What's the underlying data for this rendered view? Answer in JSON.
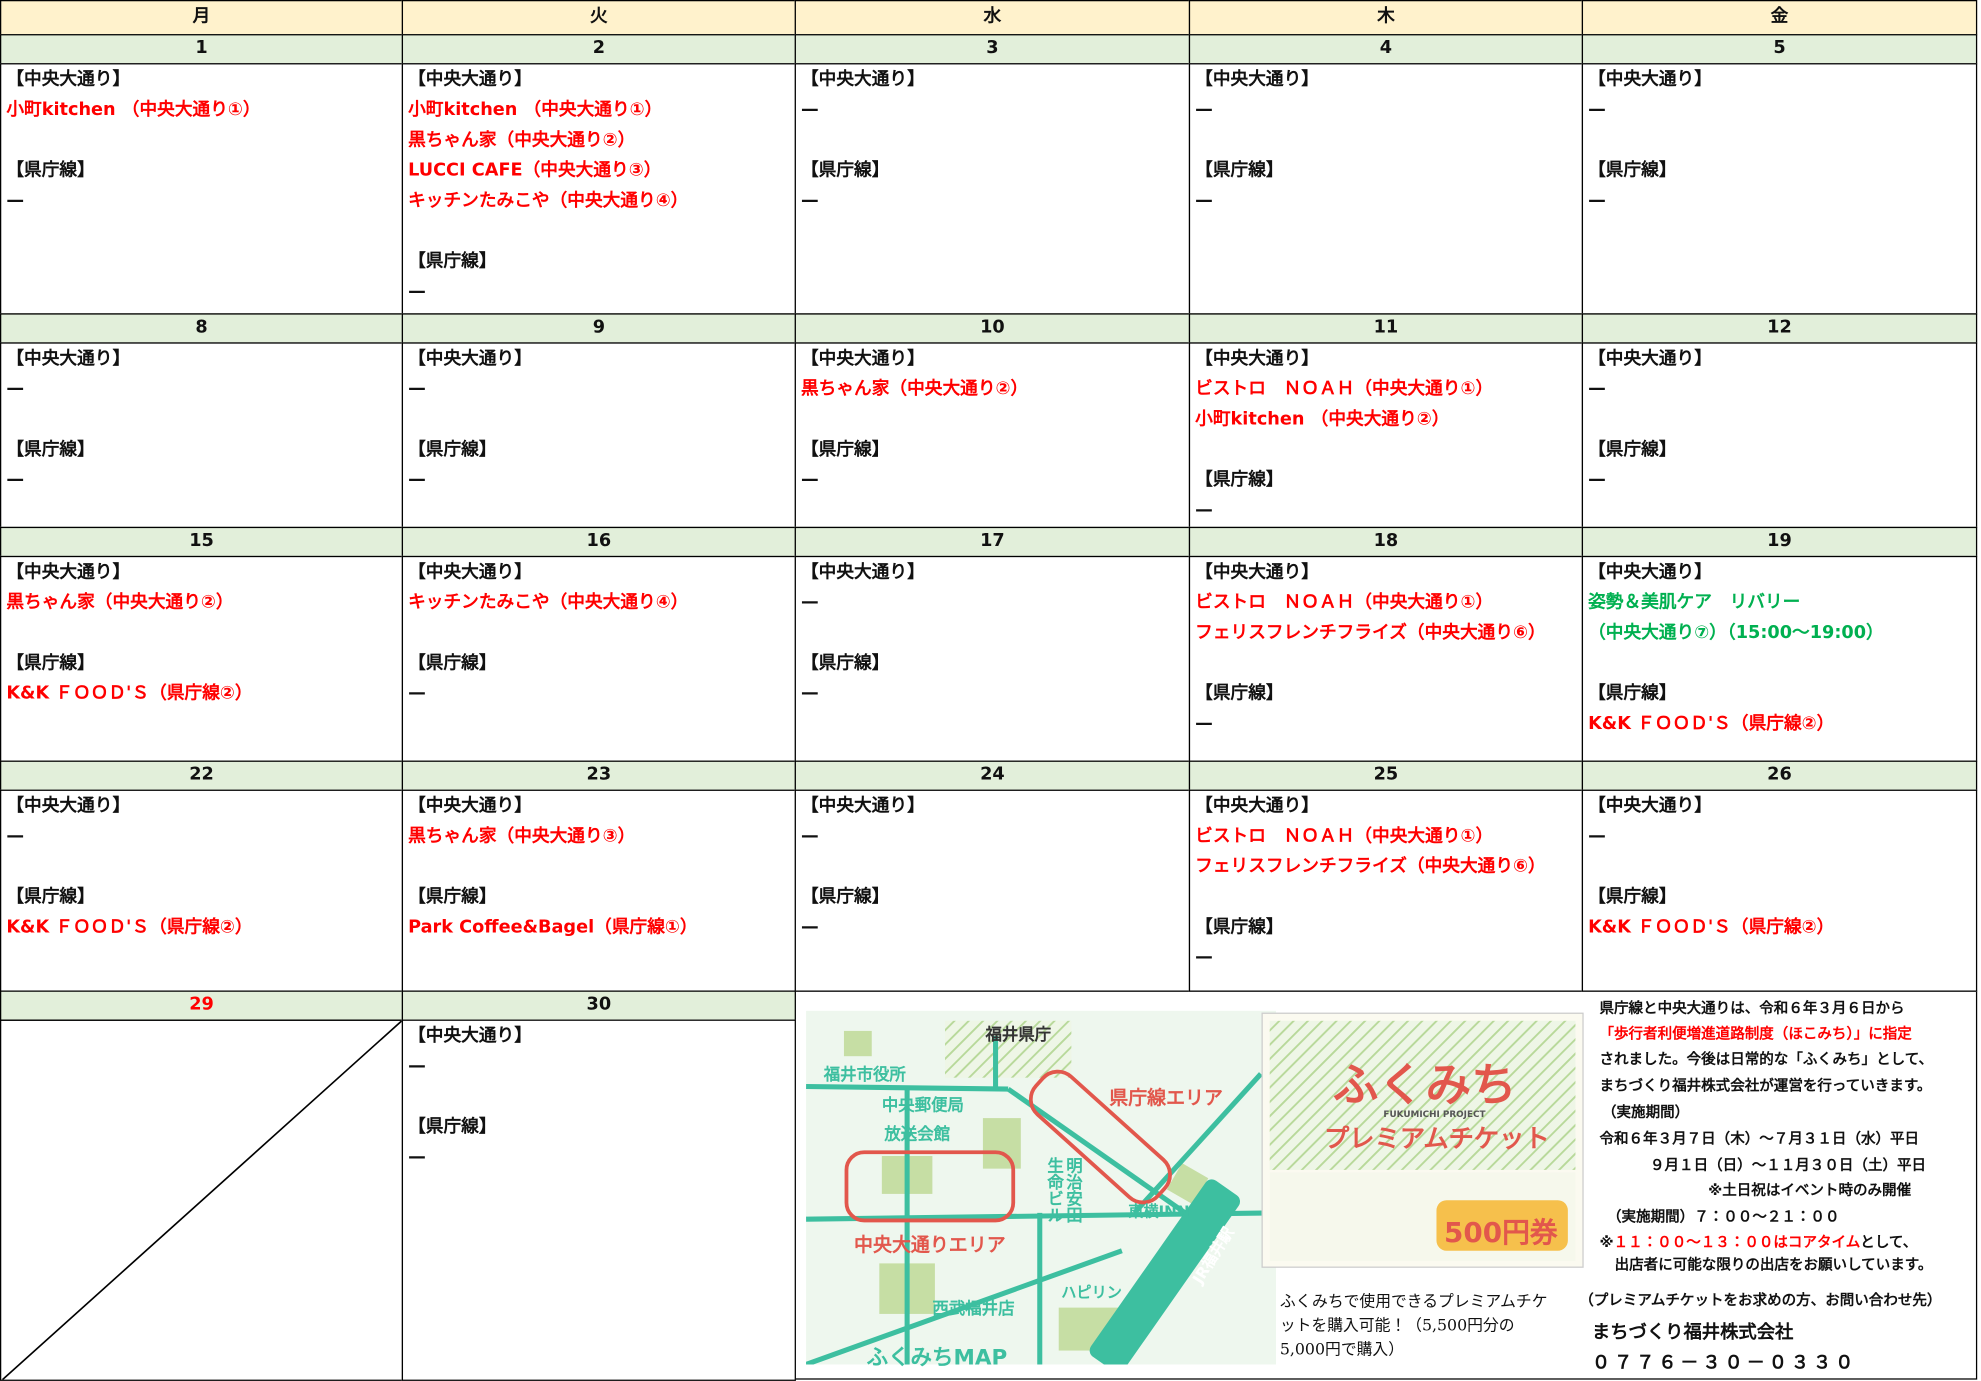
{
  "header": {
    "days": [
      "月",
      "火",
      "水",
      "木",
      "金"
    ]
  },
  "weeks": [
    {
      "days": [
        {
          "date": 1,
          "sections": [
            {
              "heading": "【中央大通り】",
              "items": [
                {
                  "text": "小町kitchen （中央大通り①）",
                  "color": "#ff0000"
                }
              ]
            },
            {
              "heading": "【県庁線】",
              "items": [
                {
                  "text": "—"
                }
              ]
            }
          ]
        },
        {
          "date": 2,
          "sections": [
            {
              "heading": "【中央大通り】",
              "items": [
                {
                  "text": "小町kitchen （中央大通り①）",
                  "color": "#ff0000"
                },
                {
                  "text": "黒ちゃん家（中央大通り②）",
                  "color": "#ff0000"
                },
                {
                  "text": "LUCCI CAFE（中央大通り③）",
                  "color": "#ff0000"
                },
                {
                  "text": "キッチンたみこや（中央大通り④）",
                  "color": "#ff0000"
                }
              ]
            },
            {
              "heading": "【県庁線】",
              "items": [
                {
                  "text": "—"
                }
              ]
            }
          ]
        },
        {
          "date": 3,
          "sections": [
            {
              "heading": "【中央大通り】",
              "items": [
                {
                  "text": "—"
                }
              ]
            },
            {
              "heading": "【県庁線】",
              "items": [
                {
                  "text": "—"
                }
              ]
            }
          ]
        },
        {
          "date": 4,
          "sections": [
            {
              "heading": "【中央大通り】",
              "items": [
                {
                  "text": "—"
                }
              ]
            },
            {
              "heading": "【県庁線】",
              "items": [
                {
                  "text": "—"
                }
              ]
            }
          ]
        },
        {
          "date": 5,
          "sections": [
            {
              "heading": "【中央大通り】",
              "items": [
                {
                  "text": "—"
                }
              ]
            },
            {
              "heading": "【県庁線】",
              "items": [
                {
                  "text": "—"
                }
              ]
            }
          ]
        }
      ]
    },
    {
      "days": [
        {
          "date": 8,
          "sections": [
            {
              "heading": "【中央大通り】",
              "items": [
                {
                  "text": "—"
                }
              ]
            },
            {
              "heading": "【県庁線】",
              "items": [
                {
                  "text": "—"
                }
              ]
            }
          ]
        },
        {
          "date": 9,
          "sections": [
            {
              "heading": "【中央大通り】",
              "items": [
                {
                  "text": "—"
                }
              ]
            },
            {
              "heading": "【県庁線】",
              "items": [
                {
                  "text": "—"
                }
              ]
            }
          ]
        },
        {
          "date": 10,
          "sections": [
            {
              "heading": "【中央大通り】",
              "items": [
                {
                  "text": "黒ちゃん家（中央大通り②）",
                  "color": "#ff0000"
                }
              ]
            },
            {
              "heading": "【県庁線】",
              "items": [
                {
                  "text": "—"
                }
              ]
            }
          ]
        },
        {
          "date": 11,
          "sections": [
            {
              "heading": "【中央大通り】",
              "items": [
                {
                  "text": "ビストロ　ＮＯＡＨ（中央大通り①）",
                  "color": "#ff0000"
                },
                {
                  "text": "小町kitchen （中央大通り②）",
                  "color": "#ff0000"
                }
              ]
            },
            {
              "heading": "【県庁線】",
              "items": [
                {
                  "text": "—"
                }
              ]
            }
          ]
        },
        {
          "date": 12,
          "sections": [
            {
              "heading": "【中央大通り】",
              "items": [
                {
                  "text": "—"
                }
              ]
            },
            {
              "heading": "【県庁線】",
              "items": [
                {
                  "text": "—"
                }
              ]
            }
          ]
        }
      ]
    },
    {
      "days": [
        {
          "date": 15,
          "sections": [
            {
              "heading": "【中央大通り】",
              "items": [
                {
                  "text": "黒ちゃん家（中央大通り②）",
                  "color": "#ff0000"
                }
              ]
            },
            {
              "heading": "【県庁線】",
              "items": [
                {
                  "text": "K&K ＦＯＯＤ'Ｓ（県庁線②）",
                  "color": "#ff0000"
                }
              ]
            }
          ]
        },
        {
          "date": 16,
          "sections": [
            {
              "heading": "【中央大通り】",
              "items": [
                {
                  "text": "キッチンたみこや（中央大通り④）",
                  "color": "#ff0000"
                }
              ]
            },
            {
              "heading": "【県庁線】",
              "items": [
                {
                  "text": "—"
                }
              ]
            }
          ]
        },
        {
          "date": 17,
          "sections": [
            {
              "heading": "【中央大通り】",
              "items": [
                {
                  "text": "—"
                }
              ]
            },
            {
              "heading": "【県庁線】",
              "items": [
                {
                  "text": "—"
                }
              ]
            }
          ]
        },
        {
          "date": 18,
          "sections": [
            {
              "heading": "【中央大通り】",
              "items": [
                {
                  "text": "ビストロ　ＮＯＡＨ（中央大通り①）",
                  "color": "#ff0000"
                },
                {
                  "text": "フェリスフレンチフライズ（中央大通り⑥）",
                  "color": "#ff0000"
                }
              ]
            },
            {
              "heading": "【県庁線】",
              "items": [
                {
                  "text": "—"
                }
              ]
            }
          ]
        },
        {
          "date": 19,
          "sections": [
            {
              "heading": "【中央大通り】",
              "items": [
                {
                  "text": "姿勢＆美肌ケア　リバリー",
                  "color": "#00b050"
                },
                {
                  "text": "（中央大通り⑦）（15:00～19:00）",
                  "color": "#00b050"
                }
              ]
            },
            {
              "heading": "【県庁線】",
              "items": [
                {
                  "text": "K&K ＦＯＯＤ'Ｓ（県庁線②）",
                  "color": "#ff0000"
                }
              ]
            }
          ]
        }
      ]
    },
    {
      "days": [
        {
          "date": 22,
          "sections": [
            {
              "heading": "【中央大通り】",
              "items": [
                {
                  "text": "—"
                }
              ]
            },
            {
              "heading": "【県庁線】",
              "items": [
                {
                  "text": "K&K ＦＯＯＤ'Ｓ（県庁線②）",
                  "color": "#ff0000"
                }
              ]
            }
          ]
        },
        {
          "date": 23,
          "sections": [
            {
              "heading": "【中央大通り】",
              "items": [
                {
                  "text": "黒ちゃん家（中央大通り③）",
                  "color": "#ff0000"
                }
              ]
            },
            {
              "heading": "【県庁線】",
              "items": [
                {
                  "text": "Park Coffee&Bagel（県庁線①）",
                  "color": "#ff0000"
                }
              ]
            }
          ]
        },
        {
          "date": 24,
          "sections": [
            {
              "heading": "【中央大通り】",
              "items": [
                {
                  "text": "—"
                }
              ]
            },
            {
              "heading": "【県庁線】",
              "items": [
                {
                  "text": "—"
                }
              ]
            }
          ]
        },
        {
          "date": 25,
          "sections": [
            {
              "heading": "【中央大通り】",
              "items": [
                {
                  "text": "ビストロ　ＮＯＡＨ（中央大通り①）",
                  "color": "#ff0000"
                },
                {
                  "text": "フェリスフレンチフライズ（中央大通り⑥）",
                  "color": "#ff0000"
                }
              ]
            },
            {
              "heading": "【県庁線】",
              "items": [
                {
                  "text": "—"
                }
              ]
            }
          ]
        },
        {
          "date": 26,
          "sections": [
            {
              "heading": "【中央大通り】",
              "items": [
                {
                  "text": "—"
                }
              ]
            },
            {
              "heading": "【県庁線】",
              "items": [
                {
                  "text": "K&K ＦＯＯＤ'Ｓ（県庁線②）",
                  "color": "#ff0000"
                }
              ]
            }
          ]
        }
      ]
    },
    {
      "days": [
        {
          "date": 29,
          "date_color": "#ff0000",
          "empty": true
        },
        {
          "date": 30,
          "sections": [
            {
              "heading": "【中央大通り】",
              "items": [
                {
                  "text": "—"
                }
              ]
            },
            {
              "heading": "【県庁線】",
              "items": [
                {
                  "text": "—"
                }
              ]
            }
          ]
        }
      ]
    }
  ],
  "notice": {
    "map": {
      "labels": [
        "福井県庁",
        "福井市役所",
        "中央郵便局",
        "放送会館",
        "県庁線エリア",
        "明治安田生命ビル",
        "東横INN",
        "中央大通りエリア",
        "JR福井駅",
        "西武福井店",
        "ハピリン",
        "ふくみちMAP"
      ]
    },
    "ticket": {
      "logo": "ふくみち",
      "project": "FUKUMICHI PROJECT",
      "name": "プレミアムチケット",
      "voucher": "500円券"
    },
    "caption": "ふくみちで使用できるプレミアムチケットを購入可能！（5,500円分の5,000円で購入）",
    "lines": [
      {
        "parts": [
          {
            "text": "県庁線と中央大通りは、令和６年３月６日から"
          }
        ]
      },
      {
        "parts": [
          {
            "text": "「歩行者利便増進道路制度（ほこみち）」に指定",
            "color": "#ff0000"
          }
        ]
      },
      {
        "parts": [
          {
            "text": "されました。今後は日常的な「ふくみち」として、"
          }
        ]
      },
      {
        "parts": [
          {
            "text": "まちづくり福井株式会社が運営を行っていきます。"
          }
        ]
      },
      {
        "parts": [
          {
            "text": "（実施期間）"
          }
        ]
      },
      {
        "parts": [
          {
            "text": "令和６年３月７日（木）～７月３１日（水）平日"
          }
        ]
      },
      {
        "parts": [
          {
            "text": "９月１日（日）～１１月３０日（土）平日"
          }
        ]
      },
      {
        "parts": [
          {
            "text": "※土日祝はイベント時のみ開催"
          }
        ]
      },
      {
        "parts": [
          {
            "text": "（実施期間）７：００～２１：００"
          }
        ]
      },
      {
        "parts": [
          {
            "text": "※"
          },
          {
            "text": "１１：００～１３：００はコアタイム",
            "color": "#ff0000"
          },
          {
            "text": "として、"
          }
        ]
      },
      {
        "parts": [
          {
            "text": "出店者に可能な限りの出店をお願いしています。"
          }
        ]
      },
      {
        "parts": [
          {
            "text": "（プレミアムチケットをお求めの方、お問い合わせ先）"
          }
        ]
      },
      {
        "parts": [
          {
            "text": "まちづくり福井株式会社"
          }
        ]
      },
      {
        "parts": [
          {
            "text": "０７７６－３０－０３３０"
          }
        ]
      }
    ]
  }
}
